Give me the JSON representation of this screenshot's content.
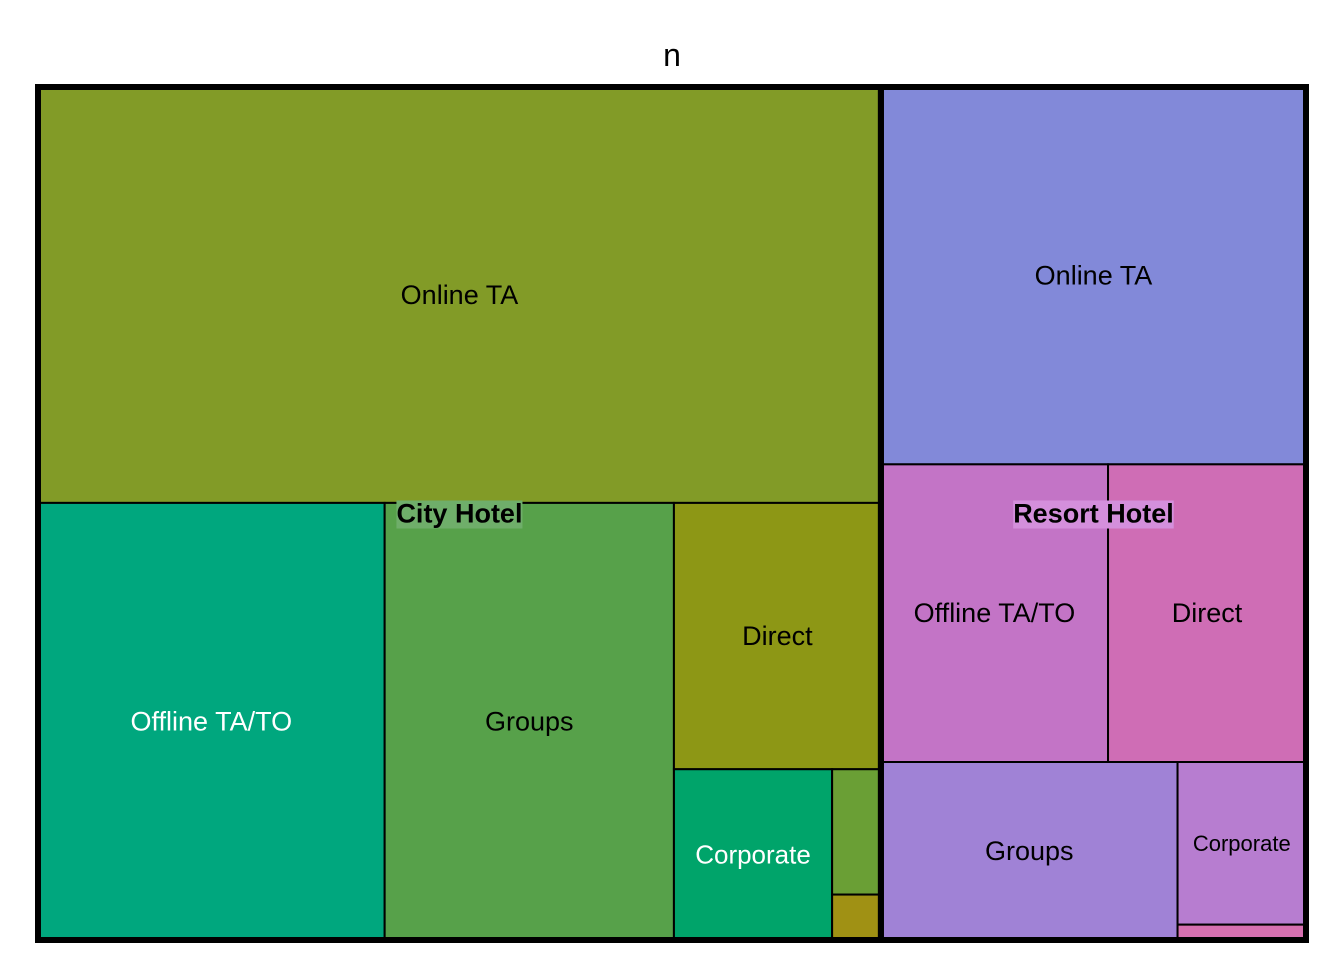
{
  "chart_data": {
    "type": "treemap",
    "title": "n",
    "groups": [
      {
        "name": "City Hotel",
        "label_bg": "#6fae6a",
        "children": [
          {
            "label": "Online TA",
            "value": 38748,
            "color": "#829B27",
            "text_color": "#000000",
            "font": 27
          },
          {
            "label": "Offline TA/TO",
            "value": 16747,
            "color": "#00A77E",
            "text_color": "#ffffff",
            "font": 27
          },
          {
            "label": "Groups",
            "value": 13975,
            "color": "#57A14A",
            "text_color": "#000000",
            "font": 27
          },
          {
            "label": "Direct",
            "value": 6093,
            "color": "#8D9715",
            "text_color": "#000000",
            "font": 27
          },
          {
            "label": "Corporate",
            "value": 2986,
            "color": "#00A46A",
            "text_color": "#ffffff",
            "font": 26
          },
          {
            "label": "",
            "value": 676,
            "color": "#6A9F35",
            "text_color": "#000000",
            "font": 14
          },
          {
            "label": "",
            "value": 245,
            "color": "#A09114",
            "text_color": "#000000",
            "font": 14
          }
        ]
      },
      {
        "name": "Resort Hotel",
        "label_bg": "#d48fdc",
        "children": [
          {
            "label": "Online TA",
            "value": 17729,
            "color": "#8289D9",
            "text_color": "#000000",
            "font": 27
          },
          {
            "label": "Offline TA/TO",
            "value": 7472,
            "color": "#C374C6",
            "text_color": "#000000",
            "font": 27
          },
          {
            "label": "Direct",
            "value": 6513,
            "color": "#CF6DB5",
            "text_color": "#000000",
            "font": 27
          },
          {
            "label": "Groups",
            "value": 5836,
            "color": "#A082D6",
            "text_color": "#000000",
            "font": 27
          },
          {
            "label": "Corporate",
            "value": 2309,
            "color": "#B77DD0",
            "text_color": "#000000",
            "font": 22
          },
          {
            "label": "",
            "value": 218,
            "color": "#D670B0",
            "text_color": "#000000",
            "font": 12
          }
        ]
      }
    ]
  }
}
